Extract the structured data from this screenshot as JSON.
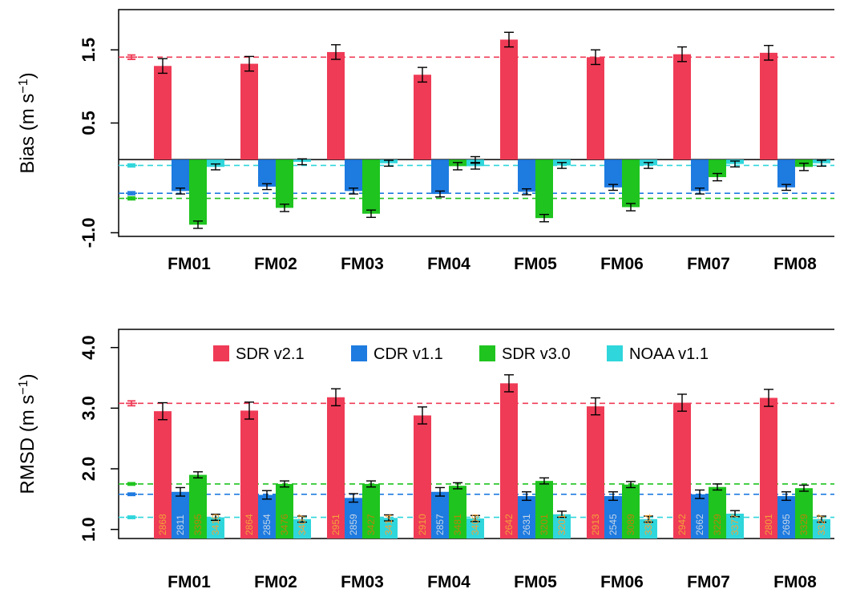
{
  "colors": {
    "SDR v2.1": "#ef3b56",
    "CDR v1.1": "#1e7be0",
    "SDR v3.0": "#1fc41f",
    "NOAA v1.1": "#2fd6db",
    "count_on_red": "#f4a33a",
    "count_on_blue": "#c7d6e8",
    "count_on_green": "#b8860b",
    "count_on_cyan": "#f4a33a"
  },
  "legend": [
    "SDR v2.1",
    "CDR v1.1",
    "SDR v3.0",
    "NOAA v1.1"
  ],
  "chart_data": [
    {
      "type": "bar",
      "ylabel_main": "Bias (m s",
      "ylabel_sup": "−1",
      "ylabel_close": ")",
      "ylim": [
        -1.05,
        2.05
      ],
      "yticks": [
        -1.0,
        0.5,
        1.5
      ],
      "ytick_labels": [
        "-1.0",
        "0.5",
        "1.5"
      ],
      "zero_line": true,
      "categories": [
        "FM01",
        "FM02",
        "FM03",
        "FM04",
        "FM05",
        "FM06",
        "FM07",
        "FM08"
      ],
      "series": [
        {
          "name": "SDR v2.1",
          "values": [
            1.28,
            1.31,
            1.47,
            1.16,
            1.64,
            1.4,
            1.44,
            1.46
          ],
          "errors": [
            0.1,
            0.1,
            0.1,
            0.1,
            0.1,
            0.1,
            0.1,
            0.1
          ]
        },
        {
          "name": "CDR v1.1",
          "values": [
            -0.43,
            -0.37,
            -0.43,
            -0.47,
            -0.44,
            -0.38,
            -0.43,
            -0.38
          ],
          "errors": [
            0.04,
            0.04,
            0.04,
            0.04,
            0.04,
            0.04,
            0.04,
            0.04
          ]
        },
        {
          "name": "SDR v3.0",
          "values": [
            -0.89,
            -0.66,
            -0.74,
            -0.09,
            -0.8,
            -0.65,
            -0.24,
            -0.1
          ],
          "errors": [
            0.05,
            0.05,
            0.05,
            0.05,
            0.05,
            0.05,
            0.05,
            0.05
          ]
        },
        {
          "name": "NOAA v1.1",
          "values": [
            -0.1,
            -0.03,
            -0.05,
            -0.09,
            -0.08,
            -0.08,
            -0.06,
            -0.05
          ],
          "errors": [
            0.04,
            0.04,
            0.04,
            0.04,
            0.04,
            0.04,
            0.04,
            0.04
          ]
        }
      ],
      "extra_errorbars": [
        {
          "category": "FM04",
          "series": "NOAA v1.1",
          "value": 0.0,
          "error": 0.04
        }
      ],
      "reference_lines": [
        {
          "series": "SDR v2.1",
          "value": 1.4,
          "error": 0.03
        },
        {
          "series": "CDR v1.1",
          "value": -0.46,
          "error": 0.02
        },
        {
          "series": "SDR v3.0",
          "value": -0.53,
          "error": 0.02
        },
        {
          "series": "NOAA v1.1",
          "value": -0.08,
          "error": 0.02
        }
      ]
    },
    {
      "type": "bar",
      "ylabel_main": "RMSD (m s",
      "ylabel_sup": "−1",
      "ylabel_close": ")",
      "ylim": [
        0.85,
        4.3
      ],
      "yticks": [
        1.0,
        2.0,
        3.0,
        4.0
      ],
      "ytick_labels": [
        "1.0",
        "2.0",
        "3.0",
        "4.0"
      ],
      "legend_position": "top",
      "categories": [
        "FM01",
        "FM02",
        "FM03",
        "FM04",
        "FM05",
        "FM06",
        "FM07",
        "FM08"
      ],
      "series": [
        {
          "name": "SDR v2.1",
          "values": [
            2.95,
            2.96,
            3.18,
            2.88,
            3.41,
            3.03,
            3.09,
            3.17
          ],
          "errors": [
            0.14,
            0.14,
            0.14,
            0.14,
            0.14,
            0.14,
            0.14,
            0.14
          ],
          "counts": [
            "2868",
            "2864",
            "2951",
            "2910",
            "2642",
            "2913",
            "2942",
            "2801"
          ]
        },
        {
          "name": "CDR v1.1",
          "values": [
            1.62,
            1.57,
            1.52,
            1.62,
            1.55,
            1.55,
            1.58,
            1.55
          ],
          "errors": [
            0.07,
            0.07,
            0.07,
            0.07,
            0.07,
            0.07,
            0.07,
            0.07
          ],
          "counts": [
            "2811",
            "2854",
            "2859",
            "2857",
            "2631",
            "2545",
            "2662",
            "2695"
          ]
        },
        {
          "name": "SDR v3.0",
          "values": [
            1.9,
            1.75,
            1.75,
            1.72,
            1.8,
            1.74,
            1.7,
            1.68
          ],
          "errors": [
            0.05,
            0.05,
            0.05,
            0.05,
            0.05,
            0.05,
            0.05,
            0.05
          ],
          "counts": [
            "3395",
            "3476",
            "3427",
            "3481",
            "3201",
            "3089",
            "3229",
            "3329"
          ]
        },
        {
          "name": "NOAA v1.1",
          "values": [
            1.2,
            1.17,
            1.19,
            1.18,
            1.25,
            1.17,
            1.26,
            1.17
          ],
          "errors": [
            0.05,
            0.05,
            0.05,
            0.05,
            0.05,
            0.05,
            0.05,
            0.05
          ],
          "counts": [
            "3410",
            "3407",
            "3414",
            "3409",
            "3201",
            "3384",
            "3377",
            "3327"
          ]
        }
      ],
      "reference_lines": [
        {
          "series": "SDR v2.1",
          "value": 3.08,
          "error": 0.04
        },
        {
          "series": "CDR v1.1",
          "value": 1.58,
          "error": 0.02
        },
        {
          "series": "SDR v3.0",
          "value": 1.75,
          "error": 0.02
        },
        {
          "series": "NOAA v1.1",
          "value": 1.2,
          "error": 0.02
        }
      ]
    }
  ]
}
